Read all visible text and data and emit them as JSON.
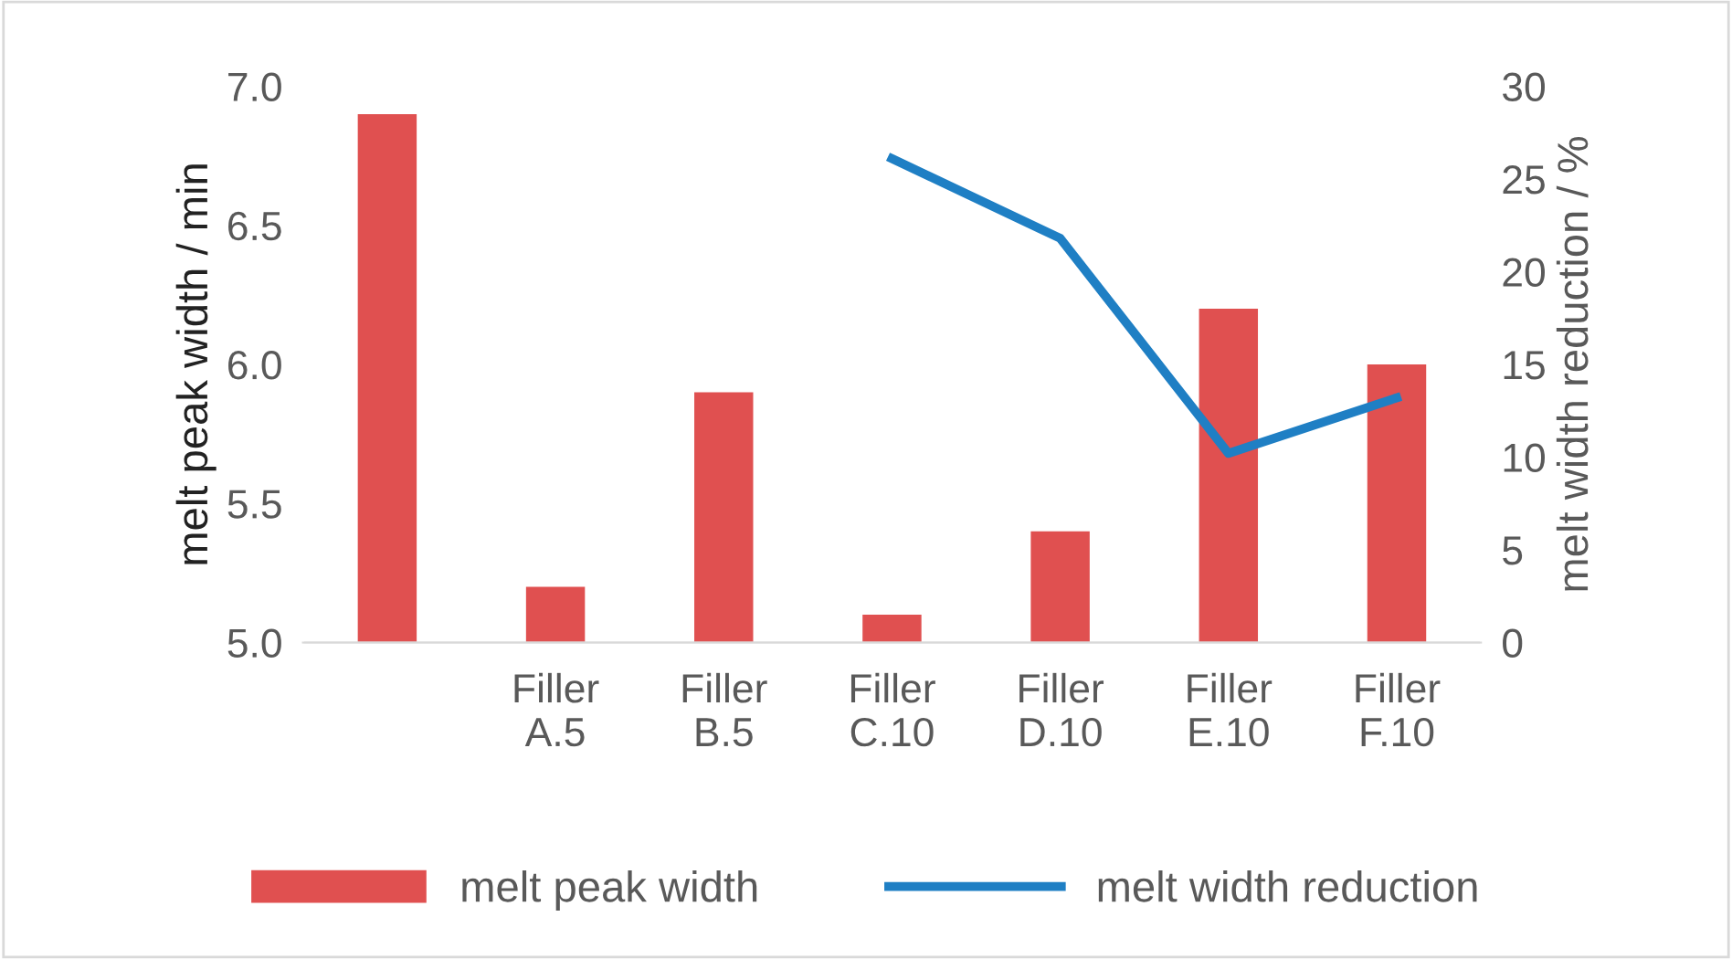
{
  "chart_data": {
    "type": "bar",
    "ylabel": "melt peak width / min",
    "y2label": "melt width reduction / %",
    "categories": [
      null,
      "Filler A.5",
      "Filler B.5",
      "Filler C.10",
      "Filler D.10",
      "Filler E.10",
      "Filler F.10"
    ],
    "series": [
      {
        "name": "melt peak width",
        "type": "bar",
        "color": "#e05050",
        "values": [
          6.9,
          5.2,
          5.9,
          5.1,
          5.4,
          6.2,
          6.0
        ]
      },
      {
        "name": "melt width reduction",
        "type": "line",
        "axis": "y2",
        "color": "#1f7fc4",
        "values": [
          null,
          null,
          null,
          26.1,
          21.8,
          10.2,
          13.2
        ]
      }
    ],
    "ylim": [
      5,
      7
    ],
    "yticks": [
      {
        "value": 5,
        "label": "5.0"
      },
      {
        "value": 5.5,
        "label": "5.5"
      },
      {
        "value": 6,
        "label": "6.0"
      },
      {
        "value": 6.5,
        "label": "6.5"
      },
      {
        "value": 7,
        "label": "7.0"
      }
    ],
    "y2lim": [
      0,
      30
    ],
    "y2ticks": [
      0,
      5,
      10,
      15,
      20,
      25,
      30
    ],
    "grid": false,
    "legend": "bottom",
    "marker": "none",
    "line_style": "solid"
  }
}
